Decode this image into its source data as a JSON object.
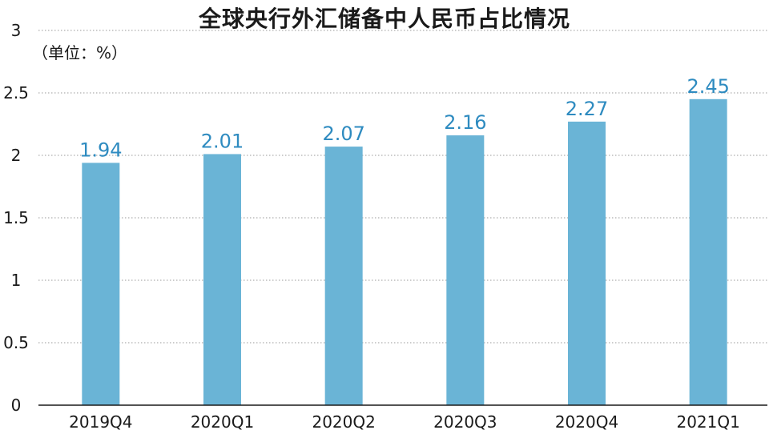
{
  "chart_data": {
    "type": "bar",
    "title": "全球央行外汇储备中人民币占比情况",
    "unit_label": "（单位：%）",
    "categories": [
      "2019Q4",
      "2020Q1",
      "2020Q2",
      "2020Q3",
      "2020Q4",
      "2021Q1"
    ],
    "values": [
      1.94,
      2.01,
      2.07,
      2.16,
      2.27,
      2.45
    ],
    "value_labels": [
      "1.94",
      "2.01",
      "2.07",
      "2.16",
      "2.27",
      "2.45"
    ],
    "ylim": [
      0,
      3
    ],
    "yticks": [
      0,
      0.5,
      1,
      1.5,
      2,
      2.5,
      3
    ],
    "ytick_labels": [
      "0",
      "0.5",
      "1",
      "1.5",
      "2",
      "2.5",
      "3"
    ],
    "grid": true,
    "bar_color": "#6ab4d6",
    "label_color": "#2e8bc0"
  }
}
